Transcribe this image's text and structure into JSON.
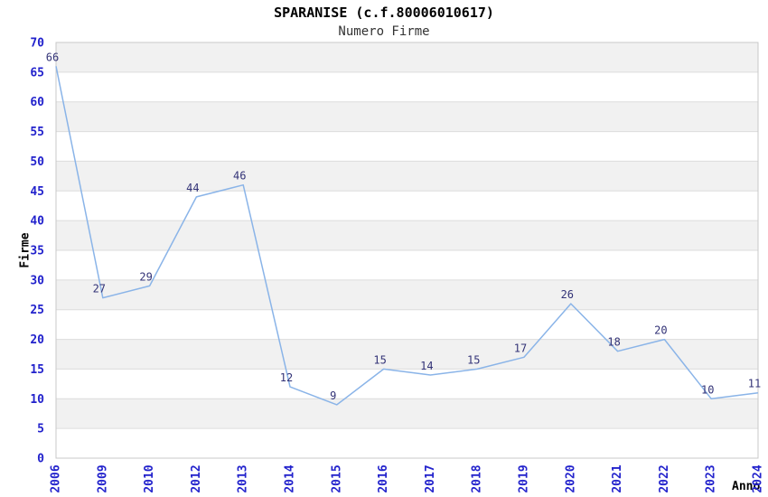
{
  "chart_data": {
    "type": "line",
    "title": "SPARANISE (c.f.80006010617)",
    "subtitle": "Numero Firme",
    "xlabel": "Anno",
    "ylabel": "Firme",
    "categories": [
      "2006",
      "2009",
      "2010",
      "2012",
      "2013",
      "2014",
      "2015",
      "2016",
      "2017",
      "2018",
      "2019",
      "2020",
      "2021",
      "2022",
      "2023",
      "2024"
    ],
    "values": [
      66,
      27,
      29,
      44,
      46,
      12,
      9,
      15,
      14,
      15,
      17,
      26,
      18,
      20,
      10,
      11
    ],
    "ylim": [
      0,
      70
    ],
    "yticks": [
      0,
      5,
      10,
      15,
      20,
      25,
      30,
      35,
      40,
      45,
      50,
      55,
      60,
      65,
      70
    ],
    "grid": "horizontal gridlines with alternating shaded bands",
    "legend": "none",
    "point_labels": "value shown above-left of each point",
    "colors": {
      "line": "#8ab4e8",
      "tick_labels": "#2222cc",
      "point_labels": "#333377",
      "band": "#f1f1f1",
      "gridline": "#dcdcdc",
      "axis_border": "#c9c9c9",
      "background": "#ffffff",
      "title": "#000000",
      "subtitle": "#333333"
    }
  }
}
